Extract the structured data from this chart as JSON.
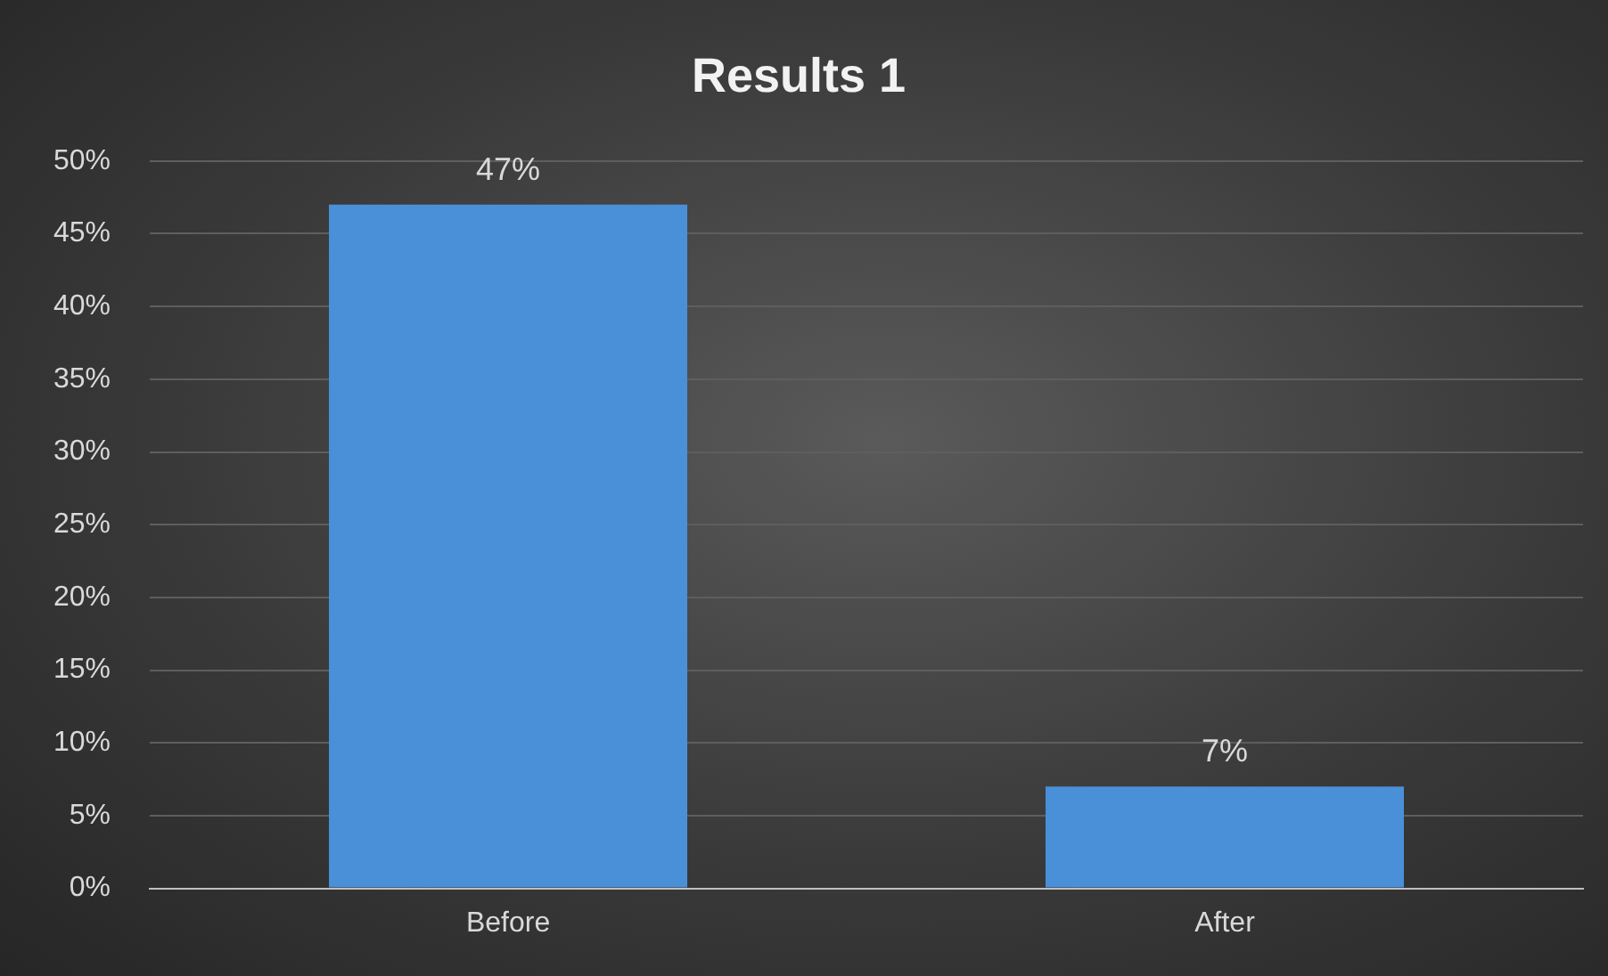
{
  "chart_data": {
    "type": "bar",
    "title": "Results 1",
    "categories": [
      "Before",
      "After"
    ],
    "values": [
      47,
      7
    ],
    "color": "#4a90d9",
    "value_labels": [
      "47%",
      "7%"
    ],
    "ylim": [
      0,
      50
    ],
    "yticks": [
      {
        "value": 0,
        "label": "0%"
      },
      {
        "value": 5,
        "label": "5%"
      },
      {
        "value": 10,
        "label": "10%"
      },
      {
        "value": 15,
        "label": "15%"
      },
      {
        "value": 20,
        "label": "20%"
      },
      {
        "value": 25,
        "label": "25%"
      },
      {
        "value": 30,
        "label": "30%"
      },
      {
        "value": 35,
        "label": "35%"
      },
      {
        "value": 40,
        "label": "40%"
      },
      {
        "value": 45,
        "label": "45%"
      },
      {
        "value": 50,
        "label": "50%"
      }
    ],
    "grid": "y",
    "legend": false
  }
}
